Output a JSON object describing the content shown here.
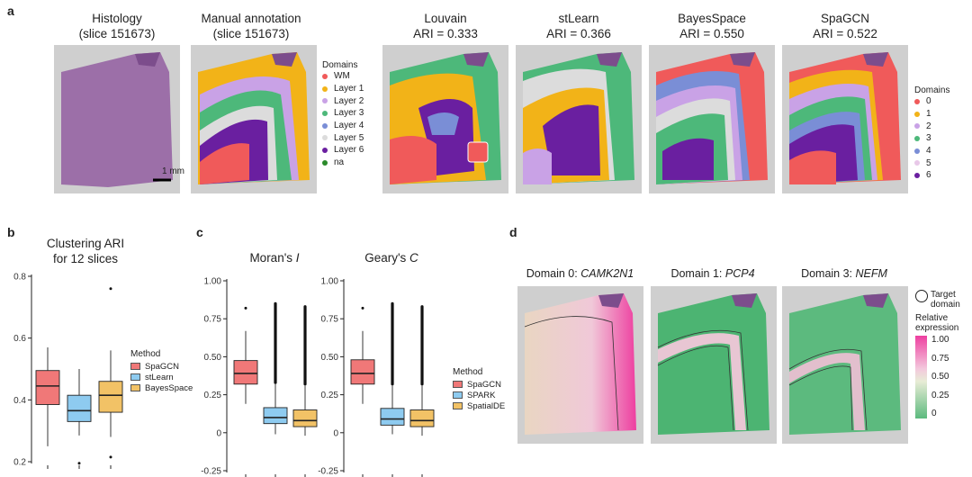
{
  "panel_a": {
    "letter": "a",
    "histology_title_1": "Histology",
    "histology_title_2": "(slice 151673)",
    "manual_title_1": "Manual annotation",
    "manual_title_2": "(slice 151673)",
    "scale_bar": "1 mm",
    "methods": [
      {
        "name": "Louvain",
        "ari": "ARI = 0.333"
      },
      {
        "name": "stLearn",
        "ari": "ARI = 0.366"
      },
      {
        "name": "BayesSpace",
        "ari": "ARI = 0.550"
      },
      {
        "name": "SpaGCN",
        "ari": "ARI = 0.522"
      }
    ],
    "manual_legend_title": "Domains",
    "manual_legend": [
      {
        "label": "WM",
        "color": "#f05a5a"
      },
      {
        "label": "Layer 1",
        "color": "#f2b318"
      },
      {
        "label": "Layer 2",
        "color": "#c9a2e6"
      },
      {
        "label": "Layer 3",
        "color": "#4db87a"
      },
      {
        "label": "Layer 4",
        "color": "#7a8ed6"
      },
      {
        "label": "Layer 5",
        "color": "#dcdcdc"
      },
      {
        "label": "Layer 6",
        "color": "#6a1fa0"
      },
      {
        "label": "na",
        "color": "#2a8a2a"
      }
    ],
    "domain_legend_title": "Domains",
    "domain_legend": [
      {
        "label": "0",
        "color": "#f05a5a"
      },
      {
        "label": "1",
        "color": "#f2b318"
      },
      {
        "label": "2",
        "color": "#c9a2e6"
      },
      {
        "label": "3",
        "color": "#4db87a"
      },
      {
        "label": "4",
        "color": "#7a8ed6"
      },
      {
        "label": "5",
        "color": "#e8c8e8"
      },
      {
        "label": "6",
        "color": "#6a1fa0"
      }
    ]
  },
  "panel_b": {
    "letter": "b",
    "title_1": "Clustering ARI",
    "title_2": "for 12 slices",
    "legend_title": "Method",
    "legend": [
      {
        "label": "SpaGCN",
        "color": "#f07878"
      },
      {
        "label": "stLearn",
        "color": "#8ecbf0"
      },
      {
        "label": "BayesSpace",
        "color": "#f2c266"
      }
    ],
    "y_ticks": [
      "0.2",
      "0.4",
      "0.6",
      "0.8"
    ]
  },
  "panel_c": {
    "letter": "c",
    "moran_title": "Moran's ",
    "moran_italic": "I",
    "geary_title": "Geary's ",
    "geary_italic": "C",
    "y_ticks": [
      "-0.25",
      "0",
      "0.25",
      "0.50",
      "0.75",
      "1.00"
    ],
    "legend_title": "Method",
    "legend": [
      {
        "label": "SpaGCN",
        "color": "#f07878"
      },
      {
        "label": "SPARK",
        "color": "#8ecbf0"
      },
      {
        "label": "SpatialDE",
        "color": "#f2c266"
      }
    ]
  },
  "panel_d": {
    "letter": "d",
    "genes": [
      {
        "prefix": "Domain 0: ",
        "gene": "CAMK2N1"
      },
      {
        "prefix": "Domain 1: ",
        "gene": "PCP4"
      },
      {
        "prefix": "Domain 3: ",
        "gene": "NEFM"
      }
    ],
    "target_label_1": "Target",
    "target_label_2": "domain",
    "relexp_1": "Relative",
    "relexp_2": "expression",
    "colorbar_ticks": [
      "1.00",
      "0.75",
      "0.50",
      "0.25",
      "0"
    ]
  },
  "chart_data": [
    {
      "type": "box",
      "title": "Clustering ARI for 12 slices",
      "ylim": [
        0.2,
        0.8
      ],
      "categories": [
        "SpaGCN",
        "stLearn",
        "BayesSpace"
      ],
      "boxes": [
        {
          "name": "SpaGCN",
          "min": 0.25,
          "q1": 0.385,
          "median": 0.445,
          "q3": 0.495,
          "max": 0.57,
          "outliers": []
        },
        {
          "name": "stLearn",
          "min": 0.285,
          "q1": 0.33,
          "median": 0.365,
          "q3": 0.415,
          "max": 0.5,
          "outliers": [
            0.195
          ]
        },
        {
          "name": "BayesSpace",
          "min": 0.28,
          "q1": 0.36,
          "median": 0.415,
          "q3": 0.46,
          "max": 0.56,
          "outliers": [
            0.76,
            0.215
          ]
        }
      ]
    },
    {
      "type": "box",
      "title": "Moran's I",
      "ylim": [
        -0.25,
        1.0
      ],
      "categories": [
        "SpaGCN",
        "SPARK",
        "SpatialDE"
      ],
      "boxes": [
        {
          "name": "SpaGCN",
          "min": 0.19,
          "q1": 0.32,
          "median": 0.39,
          "q3": 0.475,
          "max": 0.67,
          "outliers": [
            0.82
          ]
        },
        {
          "name": "SPARK",
          "min": -0.01,
          "q1": 0.06,
          "median": 0.1,
          "q3": 0.165,
          "max": 0.32,
          "outliers": [
            0.33,
            0.85
          ]
        },
        {
          "name": "SpatialDE",
          "min": -0.02,
          "q1": 0.04,
          "median": 0.08,
          "q3": 0.15,
          "max": 0.31,
          "outliers": [
            0.32,
            0.83
          ]
        }
      ]
    },
    {
      "type": "box",
      "title": "Geary's C",
      "ylim": [
        -0.25,
        1.0
      ],
      "categories": [
        "SpaGCN",
        "SPARK",
        "SpatialDE"
      ],
      "boxes": [
        {
          "name": "SpaGCN",
          "min": 0.19,
          "q1": 0.32,
          "median": 0.39,
          "q3": 0.48,
          "max": 0.67,
          "outliers": [
            0.82
          ]
        },
        {
          "name": "SPARK",
          "min": -0.01,
          "q1": 0.05,
          "median": 0.09,
          "q3": 0.16,
          "max": 0.31,
          "outliers": [
            0.32,
            0.85
          ]
        },
        {
          "name": "SpatialDE",
          "min": -0.02,
          "q1": 0.04,
          "median": 0.08,
          "q3": 0.15,
          "max": 0.31,
          "outliers": [
            0.32,
            0.83
          ]
        }
      ]
    }
  ]
}
